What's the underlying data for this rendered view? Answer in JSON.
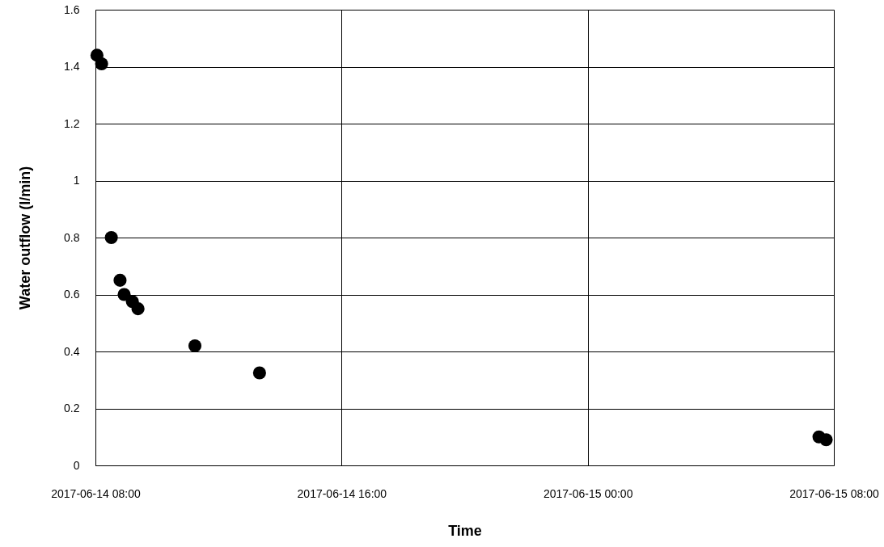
{
  "chart_data": {
    "type": "scatter",
    "xlabel": "Time",
    "ylabel": "Water outflow (l/min)",
    "x": [
      "2017-06-14T08:03",
      "2017-06-14T08:12",
      "2017-06-14T08:31",
      "2017-06-14T08:48",
      "2017-06-14T08:56",
      "2017-06-14T09:12",
      "2017-06-14T09:23",
      "2017-06-14T11:14",
      "2017-06-14T13:20",
      "2017-06-15T07:31",
      "2017-06-15T07:45"
    ],
    "series": [
      {
        "color": "#000000",
        "values": [
          1.44,
          1.41,
          0.8,
          0.65,
          0.6,
          0.575,
          0.55,
          0.42,
          0.325,
          0.1,
          0.09
        ]
      }
    ],
    "xlim": [
      "2017-06-14T08:00",
      "2017-06-15T08:00"
    ],
    "xticks": [
      {
        "value": "2017-06-14T08:00",
        "label": "2017-06-14 08:00"
      },
      {
        "value": "2017-06-14T16:00",
        "label": "2017-06-14 16:00"
      },
      {
        "value": "2017-06-15T00:00",
        "label": "2017-06-15 00:00"
      },
      {
        "value": "2017-06-15T08:00",
        "label": "2017-06-15 08:00"
      }
    ],
    "ylim": [
      0,
      1.6
    ],
    "yticks": [
      0,
      0.2,
      0.4,
      0.6,
      0.8,
      1,
      1.2,
      1.4,
      1.6
    ],
    "grid": true,
    "marker": "circle"
  }
}
